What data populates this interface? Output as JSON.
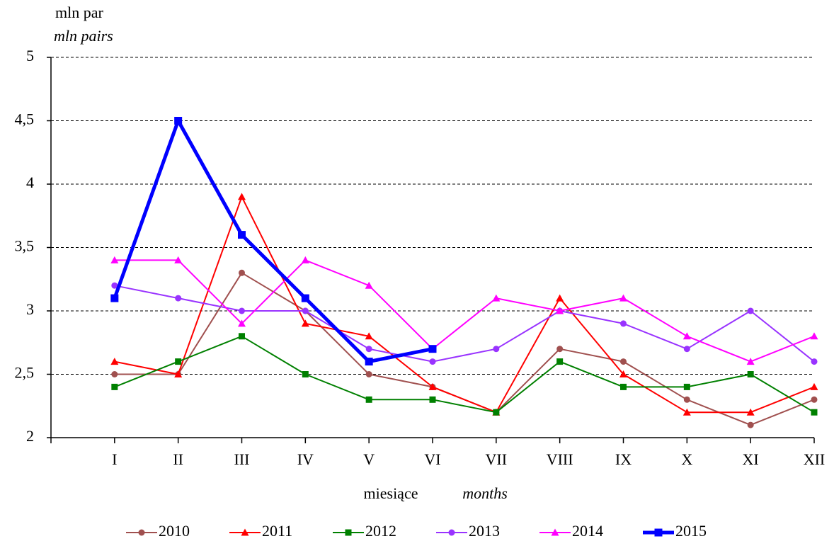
{
  "chart_data": {
    "type": "line",
    "y_label": "mln par",
    "y_label_en": "mln pairs",
    "x_label": "miesiące",
    "x_label_en": "months",
    "categories": [
      "I",
      "II",
      "III",
      "IV",
      "V",
      "VI",
      "VII",
      "VIII",
      "IX",
      "X",
      "XI",
      "XII"
    ],
    "ylim": [
      2,
      5
    ],
    "yticks": [
      2,
      {
        "value": 2.5,
        "label": "2,5"
      },
      3,
      {
        "value": 3.5,
        "label": "3,5"
      },
      4,
      {
        "value": 4.5,
        "label": "4,5"
      },
      5
    ],
    "grid": true,
    "legend": "bottom",
    "series": [
      {
        "name": "2010",
        "color": "#a0504f",
        "marker": "circle",
        "values": [
          2.5,
          2.5,
          3.3,
          3.0,
          2.5,
          2.4,
          2.2,
          2.7,
          2.6,
          2.3,
          2.1,
          2.3
        ]
      },
      {
        "name": "2011",
        "color": "#ff0000",
        "marker": "triangle",
        "values": [
          2.6,
          2.5,
          3.9,
          2.9,
          2.8,
          2.4,
          2.2,
          3.1,
          2.5,
          2.2,
          2.2,
          2.4
        ]
      },
      {
        "name": "2012",
        "color": "#008000",
        "marker": "square",
        "values": [
          2.4,
          2.6,
          2.8,
          2.5,
          2.3,
          2.3,
          2.2,
          2.6,
          2.4,
          2.4,
          2.5,
          2.2
        ]
      },
      {
        "name": "2013",
        "color": "#9933ff",
        "marker": "circle",
        "values": [
          3.2,
          3.1,
          3.0,
          3.0,
          2.7,
          2.6,
          2.7,
          3.0,
          2.9,
          2.7,
          3.0,
          2.6
        ]
      },
      {
        "name": "2014",
        "color": "#ff00ff",
        "marker": "triangle",
        "values": [
          3.4,
          3.4,
          2.9,
          3.4,
          3.2,
          2.7,
          3.1,
          3.0,
          3.1,
          2.8,
          2.6,
          2.8
        ]
      },
      {
        "name": "2015",
        "color": "#0000ff",
        "marker": "square",
        "width": 5,
        "values": [
          3.1,
          4.5,
          3.6,
          3.1,
          2.6,
          2.7,
          null,
          null,
          null,
          null,
          null,
          null
        ]
      }
    ]
  }
}
